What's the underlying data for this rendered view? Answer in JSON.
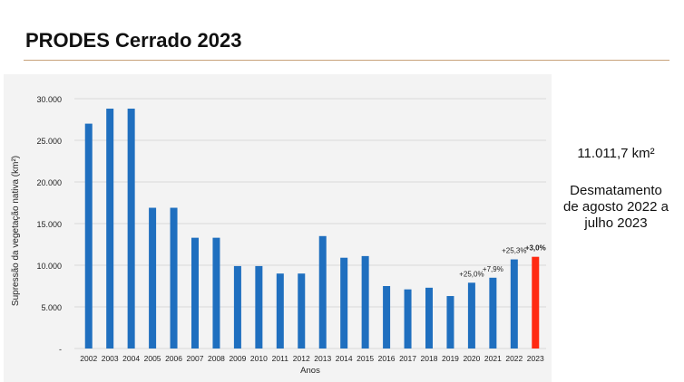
{
  "title": "PRODES Cerrado 2023",
  "side_panel": {
    "area": "11.011,7 km²",
    "description": "Desmatamento\nde agosto 2022 a\njulho 2023"
  },
  "colors": {
    "bar": "#1f6fbf",
    "highlight_bar": "#ff2a12",
    "title_rule": "#c8a27a",
    "panel_bg": "#f3f3f3",
    "grid": "#d9d9d9"
  },
  "chart_data": {
    "type": "bar",
    "xlabel": "Anos",
    "ylabel": "Supressão da vegetação nativa (km²)",
    "ylim": [
      0,
      30000
    ],
    "yticks": [
      0,
      5000,
      10000,
      15000,
      20000,
      25000,
      30000
    ],
    "ytick_labels": [
      "-",
      "5.000",
      "10.000",
      "15.000",
      "20.000",
      "25.000",
      "30.000"
    ],
    "grid": true,
    "categories": [
      "2002",
      "2003",
      "2004",
      "2005",
      "2006",
      "2007",
      "2008",
      "2009",
      "2010",
      "2011",
      "2012",
      "2013",
      "2014",
      "2015",
      "2016",
      "2017",
      "2018",
      "2019",
      "2020",
      "2021",
      "2022",
      "2023"
    ],
    "values": [
      27000,
      28800,
      28800,
      16900,
      16900,
      13300,
      13300,
      9900,
      9900,
      9000,
      9000,
      13500,
      10900,
      11100,
      7500,
      7100,
      7300,
      6300,
      7900,
      8500,
      10700,
      11011.7
    ],
    "highlight": [
      "2023"
    ],
    "annotations": [
      {
        "category": "2020",
        "text": "+25,0%",
        "bold": false
      },
      {
        "category": "2021",
        "text": "+7,9%",
        "bold": false
      },
      {
        "category": "2022",
        "text": "+25,3%",
        "bold": false
      },
      {
        "category": "2023",
        "text": "+3,0%",
        "bold": true
      }
    ]
  }
}
